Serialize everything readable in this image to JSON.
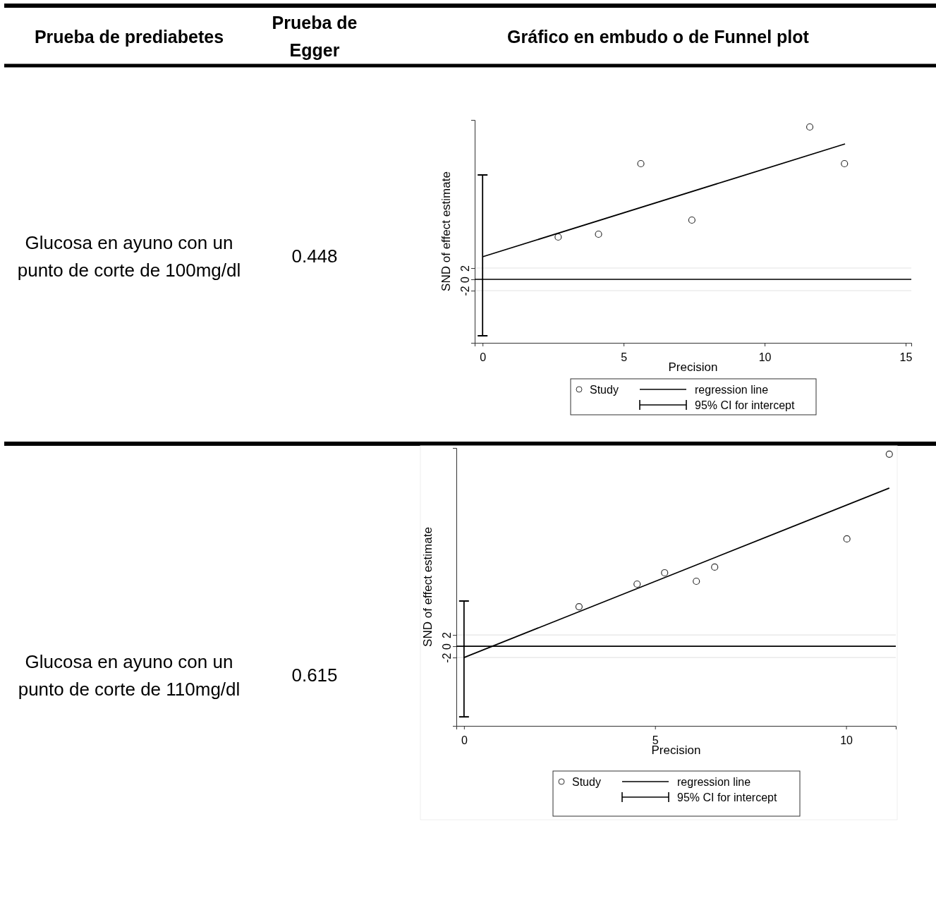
{
  "chart_data": [
    {
      "type": "other",
      "annotations": [
        "Prueba de prediabetes",
        "Prueba de Egger",
        "Gráfico en embudo o de Funnel plot"
      ]
    },
    {
      "type": "scatter",
      "xlabel": "Precision",
      "ylabel": "SND of effect estimate",
      "xlim": [
        -0.28,
        15.2
      ],
      "ylim": [
        -11.25,
        28.25
      ],
      "xticks": [
        0,
        5,
        10,
        15
      ],
      "yticks": [
        -2,
        0,
        2
      ],
      "grid": "y",
      "legend": "bottom",
      "ref_lines": [
        {
          "axis": "y",
          "value": 0,
          "color": "#000000"
        }
      ],
      "annotations": [
        "Glucosa en ayuno con un punto de corte de 100mg/dl",
        "0.448"
      ],
      "series": [
        {
          "name": "Study",
          "type": "scatter",
          "marker": "circle",
          "color": "#333333",
          "x": [
            2.68,
            4.11,
            5.61,
            7.42,
            11.6,
            12.83
          ],
          "values": [
            7.5,
            8,
            20.5,
            10.5,
            27,
            20.5
          ]
        },
        {
          "name": "regression line",
          "type": "line",
          "marker": "none",
          "color": "#000000",
          "x": [
            0,
            12.85
          ],
          "values": [
            4,
            24
          ]
        },
        {
          "name": "95% CI for intercept",
          "type": "line",
          "marker": "none",
          "color": "#000000",
          "x": [
            0,
            0
          ],
          "values": [
            -10,
            18.5
          ]
        }
      ]
    },
    {
      "type": "scatter",
      "xlabel": "Precision",
      "ylabel": "SND of effect estimate",
      "xlim": [
        -0.2,
        11.3
      ],
      "ylim": [
        -14.1,
        35.1
      ],
      "xticks": [
        0,
        5,
        10
      ],
      "yticks": [
        -2,
        0,
        2
      ],
      "grid": "y",
      "legend": "bottom",
      "ref_lines": [
        {
          "axis": "y",
          "value": 0,
          "color": "#000000"
        }
      ],
      "annotations": [
        "Glucosa en ayuno con un punto de corte de 110mg/dl",
        "0.615"
      ],
      "series": [
        {
          "name": "Study",
          "type": "scatter",
          "marker": "circle",
          "color": "#333333",
          "x": [
            3.01,
            4.53,
            5.25,
            6.08,
            6.56,
            10.02,
            11.13
          ],
          "values": [
            7,
            11,
            13,
            11.5,
            14,
            19,
            34
          ]
        },
        {
          "name": "regression line",
          "type": "line",
          "marker": "none",
          "color": "#000000",
          "x": [
            0,
            11.13
          ],
          "values": [
            -2,
            28
          ]
        },
        {
          "name": "95% CI for intercept",
          "type": "line",
          "marker": "none",
          "color": "#000000",
          "x": [
            0,
            0
          ],
          "values": [
            -12.5,
            8
          ]
        }
      ]
    }
  ]
}
